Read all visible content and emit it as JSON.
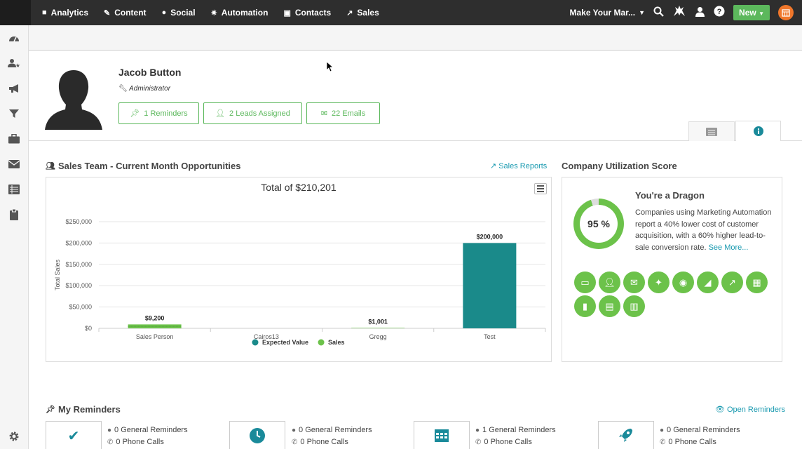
{
  "nav": {
    "items": [
      {
        "label": "Analytics",
        "icon": "bar-chart-icon",
        "glyph": "■"
      },
      {
        "label": "Content",
        "icon": "pencil-icon",
        "glyph": "✎"
      },
      {
        "label": "Social",
        "icon": "chat-icon",
        "glyph": "●"
      },
      {
        "label": "Automation",
        "icon": "wand-icon",
        "glyph": "✷"
      },
      {
        "label": "Contacts",
        "icon": "contact-card-icon",
        "glyph": "▣"
      },
      {
        "label": "Sales",
        "icon": "trend-icon",
        "glyph": "↗"
      }
    ],
    "account": "Make Your Mar...",
    "new_label": "New"
  },
  "profile": {
    "name": "Jacob Button",
    "role": "Administrator",
    "pills": [
      "1 Reminders",
      "2 Leads Assigned",
      "22 Emails"
    ]
  },
  "sales_section": {
    "title": "Sales Team - Current Month Opportunities",
    "link": "Sales Reports"
  },
  "chart_data": {
    "type": "bar",
    "title": "Total of $210,201",
    "ylabel": "Total Sales",
    "xlabel": "",
    "categories": [
      "Sales Person",
      "Cairos13",
      "Gregg",
      "Test"
    ],
    "series": [
      {
        "name": "Expected Value",
        "color": "#1a8a8a",
        "values": [
          0,
          0,
          0,
          200000
        ]
      },
      {
        "name": "Sales",
        "color": "#6cc24a",
        "values": [
          9200,
          0,
          1001,
          0
        ]
      }
    ],
    "data_labels": [
      "$9,200",
      "",
      "$1,001",
      "$200,000"
    ],
    "ylim": [
      0,
      250000
    ],
    "yticks": [
      "$0",
      "$50,000",
      "$100,000",
      "$150,000",
      "$200,000",
      "$250,000"
    ],
    "grid": true,
    "legend": "bottom"
  },
  "score": {
    "section_title": "Company Utilization Score",
    "value": "95 %",
    "percent": 95,
    "title": "You're a Dragon",
    "desc": "Companies using Marketing Automation report a 40% lower cost of customer acquisition, with a 60% higher lead-to-sale conversion rate.",
    "link": "See More...",
    "features_row1": [
      "browser-icon",
      "user-add-icon",
      "envelope-icon",
      "wand-icon",
      "user-circle-icon",
      "area-chart-icon",
      "trend-icon",
      "film-icon"
    ],
    "features_row2": [
      "clipboard-icon",
      "id-card-icon",
      "building-icon"
    ]
  },
  "reminders": {
    "title": "My Reminders",
    "link": "Open Reminders",
    "cards": [
      {
        "icon": "check-icon",
        "general": "0 General Reminders",
        "phone": "0 Phone Calls"
      },
      {
        "icon": "clock-icon",
        "general": "0 General Reminders",
        "phone": "0 Phone Calls"
      },
      {
        "icon": "calendar-icon",
        "general": "1 General Reminders",
        "phone": "0 Phone Calls"
      },
      {
        "icon": "rocket-icon",
        "general": "0 General Reminders",
        "phone": "0 Phone Calls"
      }
    ]
  }
}
